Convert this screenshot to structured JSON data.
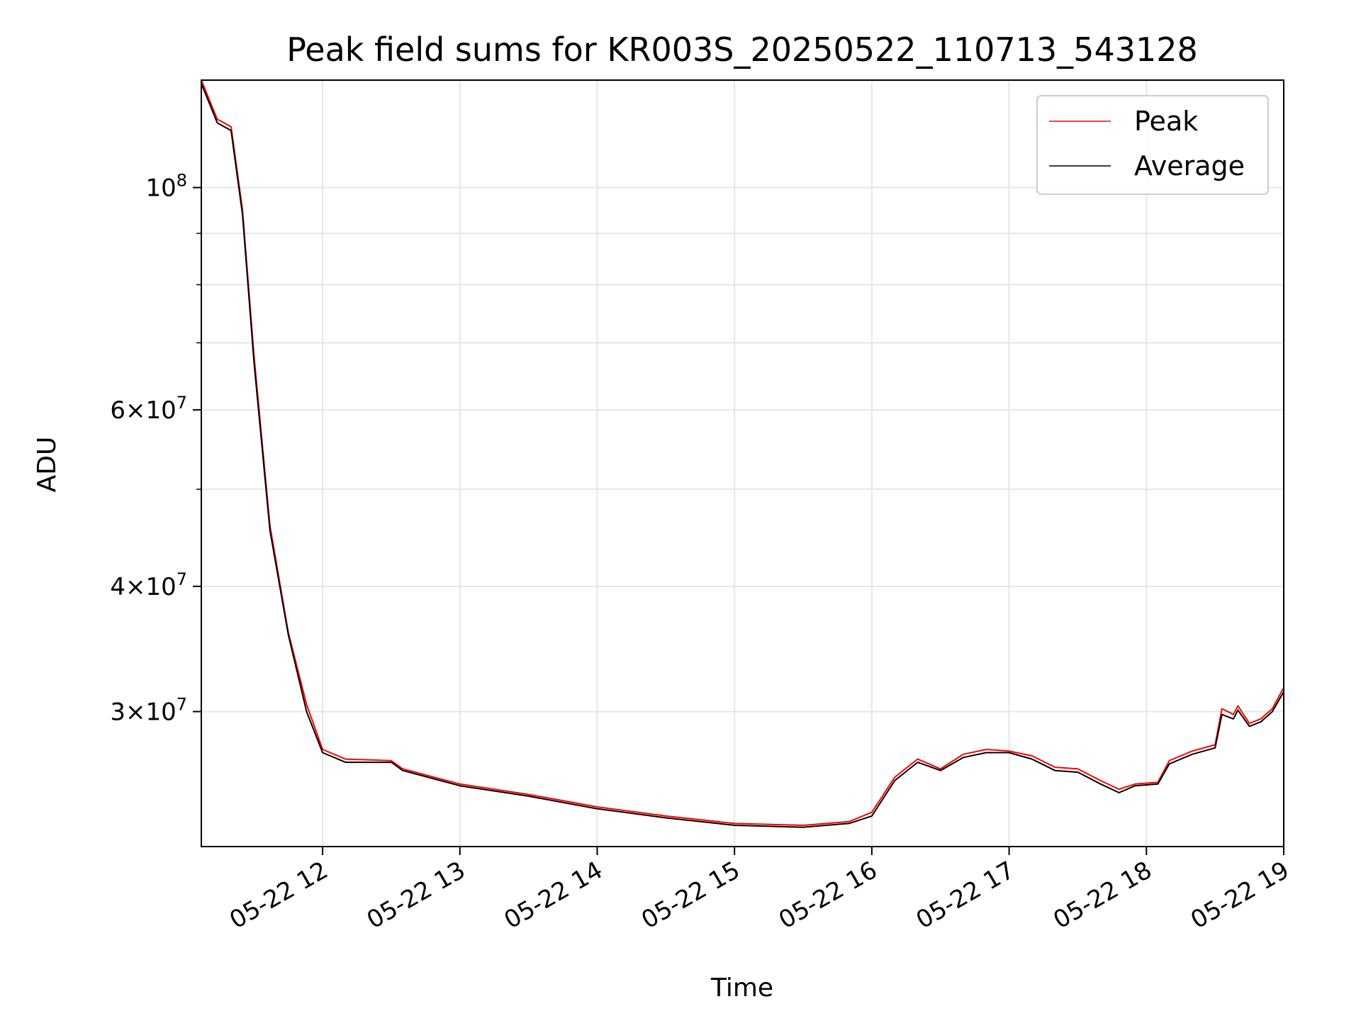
{
  "chart_data": {
    "type": "line",
    "title": "Peak field sums for KR003S_20250522_110713_543128",
    "xlabel": "Time",
    "ylabel": "ADU",
    "y_scale": "log",
    "grid": true,
    "legend_position": "top-right",
    "xlim": [
      "2025-05-22 11:07",
      "2025-05-22 19:00"
    ],
    "ylim": [
      22000000,
      128000000
    ],
    "x_ticks": [
      {
        "label": "05-22 12",
        "value": "2025-05-22 12:00"
      },
      {
        "label": "05-22 13",
        "value": "2025-05-22 13:00"
      },
      {
        "label": "05-22 14",
        "value": "2025-05-22 14:00"
      },
      {
        "label": "05-22 15",
        "value": "2025-05-22 15:00"
      },
      {
        "label": "05-22 16",
        "value": "2025-05-22 16:00"
      },
      {
        "label": "05-22 17",
        "value": "2025-05-22 17:00"
      },
      {
        "label": "05-22 18",
        "value": "2025-05-22 18:00"
      },
      {
        "label": "05-22 19",
        "value": "2025-05-22 19:00"
      }
    ],
    "y_ticks": [
      {
        "value": 100000000,
        "base": "10",
        "exp": "8"
      },
      {
        "value": 60000000,
        "mant": "6",
        "base": "10",
        "exp": "7"
      },
      {
        "value": 40000000,
        "mant": "4",
        "base": "10",
        "exp": "7"
      },
      {
        "value": 30000000,
        "mant": "3",
        "base": "10",
        "exp": "7"
      }
    ],
    "y_minor_ticks": [
      90000000,
      80000000,
      70000000,
      50000000
    ],
    "series": [
      {
        "name": "Peak",
        "color": "#ff0000",
        "x": [
          "2025-05-22 11:07",
          "2025-05-22 11:14",
          "2025-05-22 11:20",
          "2025-05-22 11:25",
          "2025-05-22 11:30",
          "2025-05-22 11:37",
          "2025-05-22 11:45",
          "2025-05-22 11:53",
          "2025-05-22 12:00",
          "2025-05-22 12:10",
          "2025-05-22 12:30",
          "2025-05-22 12:35",
          "2025-05-22 13:00",
          "2025-05-22 13:30",
          "2025-05-22 14:00",
          "2025-05-22 14:30",
          "2025-05-22 15:00",
          "2025-05-22 15:30",
          "2025-05-22 15:50",
          "2025-05-22 16:00",
          "2025-05-22 16:10",
          "2025-05-22 16:20",
          "2025-05-22 16:30",
          "2025-05-22 16:40",
          "2025-05-22 16:50",
          "2025-05-22 17:00",
          "2025-05-22 17:10",
          "2025-05-22 17:20",
          "2025-05-22 17:30",
          "2025-05-22 17:40",
          "2025-05-22 17:48",
          "2025-05-22 17:55",
          "2025-05-22 18:05",
          "2025-05-22 18:10",
          "2025-05-22 18:20",
          "2025-05-22 18:30",
          "2025-05-22 18:33",
          "2025-05-22 18:38",
          "2025-05-22 18:40",
          "2025-05-22 18:45",
          "2025-05-22 18:50",
          "2025-05-22 18:55",
          "2025-05-22 19:00"
        ],
        "y": [
          128000000,
          117000000,
          115000000,
          95000000,
          68000000,
          46000000,
          36000000,
          30500000,
          27500000,
          26900000,
          26800000,
          26300000,
          25400000,
          24800000,
          24100000,
          23600000,
          23200000,
          23100000,
          23300000,
          23800000,
          25800000,
          26900000,
          26300000,
          27200000,
          27500000,
          27400000,
          27100000,
          26400000,
          26300000,
          25600000,
          25100000,
          25400000,
          25500000,
          26800000,
          27400000,
          27800000,
          30200000,
          29800000,
          30400000,
          29200000,
          29500000,
          30200000,
          31700000
        ]
      },
      {
        "name": "Average",
        "color": "#000000",
        "x": [
          "2025-05-22 11:07",
          "2025-05-22 11:14",
          "2025-05-22 11:20",
          "2025-05-22 11:25",
          "2025-05-22 11:30",
          "2025-05-22 11:37",
          "2025-05-22 11:45",
          "2025-05-22 11:53",
          "2025-05-22 12:00",
          "2025-05-22 12:10",
          "2025-05-22 12:30",
          "2025-05-22 12:35",
          "2025-05-22 13:00",
          "2025-05-22 13:30",
          "2025-05-22 14:00",
          "2025-05-22 14:30",
          "2025-05-22 15:00",
          "2025-05-22 15:30",
          "2025-05-22 15:50",
          "2025-05-22 16:00",
          "2025-05-22 16:10",
          "2025-05-22 16:20",
          "2025-05-22 16:30",
          "2025-05-22 16:40",
          "2025-05-22 16:50",
          "2025-05-22 17:00",
          "2025-05-22 17:10",
          "2025-05-22 17:20",
          "2025-05-22 17:30",
          "2025-05-22 17:40",
          "2025-05-22 17:48",
          "2025-05-22 17:55",
          "2025-05-22 18:05",
          "2025-05-22 18:10",
          "2025-05-22 18:20",
          "2025-05-22 18:30",
          "2025-05-22 18:33",
          "2025-05-22 18:38",
          "2025-05-22 18:40",
          "2025-05-22 18:45",
          "2025-05-22 18:50",
          "2025-05-22 18:55",
          "2025-05-22 19:00"
        ],
        "y": [
          127000000,
          116000000,
          114000000,
          94000000,
          67000000,
          45500000,
          35800000,
          30000000,
          27300000,
          26700000,
          26700000,
          26200000,
          25300000,
          24700000,
          24000000,
          23500000,
          23100000,
          23000000,
          23200000,
          23600000,
          25600000,
          26700000,
          26200000,
          27000000,
          27300000,
          27300000,
          26900000,
          26200000,
          26100000,
          25400000,
          24900000,
          25300000,
          25400000,
          26600000,
          27200000,
          27600000,
          29800000,
          29500000,
          30100000,
          29000000,
          29300000,
          30000000,
          31400000
        ]
      }
    ]
  }
}
